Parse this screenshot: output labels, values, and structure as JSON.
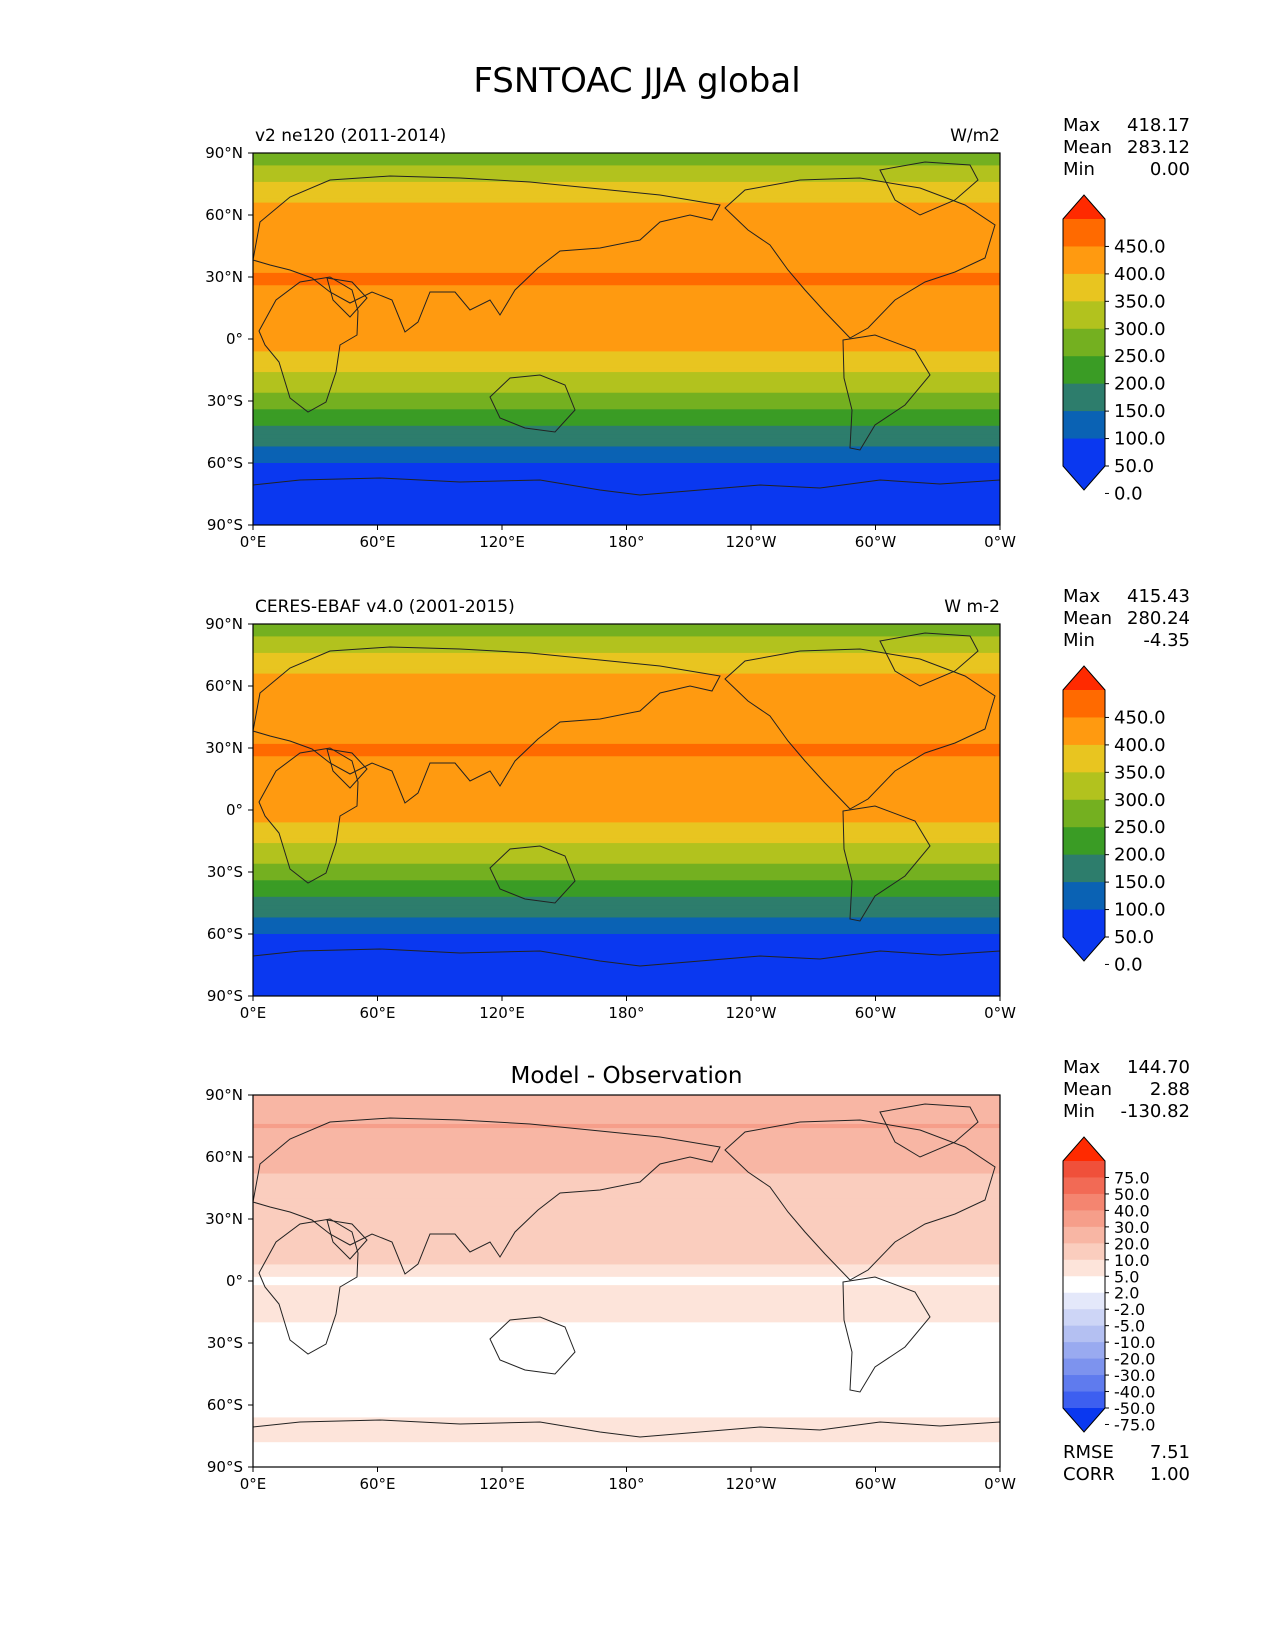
{
  "title": "FSNTOAC JJA global",
  "x_ticks": [
    "0°E",
    "60°E",
    "120°E",
    "180°",
    "120°W",
    "60°W",
    "0°W"
  ],
  "y_ticks": [
    "90°N",
    "60°N",
    "30°N",
    "0°",
    "30°S",
    "60°S",
    "90°S"
  ],
  "chart_data": [
    {
      "type": "heatmap",
      "panel": "model",
      "title_left": "v2 ne120 (2011-2014)",
      "title_center": "",
      "title_right": "W/m2",
      "xlim": [
        0,
        360
      ],
      "ylim": [
        -90,
        90
      ],
      "stats": [
        {
          "label": "Max",
          "value": "418.17"
        },
        {
          "label": "Mean",
          "value": "283.12"
        },
        {
          "label": "Min",
          "value": "0.00"
        }
      ],
      "colorbar": {
        "labels": [
          "450.0",
          "400.0",
          "350.0",
          "300.0",
          "250.0",
          "200.0",
          "150.0",
          "100.0",
          "50.0",
          "0.0"
        ],
        "colors": [
          "#ff2a00",
          "#ff6a00",
          "#ff9a10",
          "#e8c520",
          "#b2c21e",
          "#74b020",
          "#3a9c25",
          "#2d7d6c",
          "#0a62b4",
          "#0a38f0",
          "#0a38f0"
        ]
      },
      "lat_bands": [
        {
          "lat": 87,
          "value": 230
        },
        {
          "lat": 80,
          "value": 270
        },
        {
          "lat": 70,
          "value": 345
        },
        {
          "lat": 60,
          "value": 360
        },
        {
          "lat": 45,
          "value": 375
        },
        {
          "lat": 30,
          "value": 405
        },
        {
          "lat": 15,
          "value": 380
        },
        {
          "lat": 5,
          "value": 365
        },
        {
          "lat": -5,
          "value": 355
        },
        {
          "lat": -15,
          "value": 310
        },
        {
          "lat": -20,
          "value": 280
        },
        {
          "lat": -25,
          "value": 260
        },
        {
          "lat": -30,
          "value": 225
        },
        {
          "lat": -35,
          "value": 190
        },
        {
          "lat": -40,
          "value": 160
        },
        {
          "lat": -45,
          "value": 140
        },
        {
          "lat": -50,
          "value": 115
        },
        {
          "lat": -55,
          "value": 75
        },
        {
          "lat": -63,
          "value": 30
        },
        {
          "lat": -72,
          "value": 20
        },
        {
          "lat": -78,
          "value": 10
        },
        {
          "lat": -85,
          "value": 0
        }
      ]
    },
    {
      "type": "heatmap",
      "panel": "observation",
      "title_left": "CERES-EBAF v4.0 (2001-2015)",
      "title_center": "",
      "title_right": "W m-2",
      "xlim": [
        0,
        360
      ],
      "ylim": [
        -90,
        90
      ],
      "stats": [
        {
          "label": "Max",
          "value": "415.43"
        },
        {
          "label": "Mean",
          "value": "280.24"
        },
        {
          "label": "Min",
          "value": "-4.35"
        }
      ],
      "colorbar": {
        "labels": [
          "450.0",
          "400.0",
          "350.0",
          "300.0",
          "250.0",
          "200.0",
          "150.0",
          "100.0",
          "50.0",
          "0.0"
        ],
        "colors": [
          "#ff2a00",
          "#ff6a00",
          "#ff9a10",
          "#e8c520",
          "#b2c21e",
          "#74b020",
          "#3a9c25",
          "#2d7d6c",
          "#0a62b4",
          "#0a38f0",
          "#0a38f0"
        ]
      },
      "lat_bands": [
        {
          "lat": 87,
          "value": 230
        },
        {
          "lat": 80,
          "value": 270
        },
        {
          "lat": 70,
          "value": 345
        },
        {
          "lat": 60,
          "value": 360
        },
        {
          "lat": 45,
          "value": 375
        },
        {
          "lat": 30,
          "value": 405
        },
        {
          "lat": 15,
          "value": 380
        },
        {
          "lat": 5,
          "value": 365
        },
        {
          "lat": -5,
          "value": 355
        },
        {
          "lat": -15,
          "value": 310
        },
        {
          "lat": -20,
          "value": 280
        },
        {
          "lat": -25,
          "value": 260
        },
        {
          "lat": -30,
          "value": 225
        },
        {
          "lat": -35,
          "value": 190
        },
        {
          "lat": -40,
          "value": 160
        },
        {
          "lat": -45,
          "value": 140
        },
        {
          "lat": -50,
          "value": 115
        },
        {
          "lat": -55,
          "value": 75
        },
        {
          "lat": -65,
          "value": 30
        },
        {
          "lat": -72,
          "value": 20
        },
        {
          "lat": -78,
          "value": 0
        },
        {
          "lat": -85,
          "value": 0
        }
      ]
    },
    {
      "type": "heatmap",
      "panel": "difference",
      "title_left": "",
      "title_center": "Model - Observation",
      "title_right": "",
      "xlim": [
        0,
        360
      ],
      "ylim": [
        -90,
        90
      ],
      "stats": [
        {
          "label": "Max",
          "value": "144.70"
        },
        {
          "label": "Mean",
          "value": "2.88"
        },
        {
          "label": "Min",
          "value": "-130.82"
        }
      ],
      "extra_stats": [
        {
          "label": "RMSE",
          "value": "7.51"
        },
        {
          "label": "CORR",
          "value": "1.00"
        }
      ],
      "colorbar": {
        "labels": [
          "75.0",
          "50.0",
          "40.0",
          "30.0",
          "20.0",
          "10.0",
          "5.0",
          "2.0",
          "-2.0",
          "-5.0",
          "-10.0",
          "-20.0",
          "-30.0",
          "-40.0",
          "-50.0",
          "-75.0"
        ],
        "colors": [
          "#ff2a00",
          "#f0503a",
          "#f26a55",
          "#f48570",
          "#f69e8a",
          "#f8b6a4",
          "#facdbe",
          "#fde4da",
          "#ffffff",
          "#e4e8fa",
          "#cdd5f6",
          "#b4c0f2",
          "#99aaf0",
          "#7d93ee",
          "#5f7bee",
          "#3d5ff0",
          "#0a38f0"
        ]
      },
      "lat_bands": [
        {
          "lat": 85,
          "value": 12
        },
        {
          "lat": 75,
          "value": 20
        },
        {
          "lat": 60,
          "value": 12
        },
        {
          "lat": 45,
          "value": 8
        },
        {
          "lat": 30,
          "value": 6
        },
        {
          "lat": 15,
          "value": 8
        },
        {
          "lat": 0,
          "value": 1
        },
        {
          "lat": -10,
          "value": 5
        },
        {
          "lat": -25,
          "value": 0
        },
        {
          "lat": -45,
          "value": 0
        },
        {
          "lat": -60,
          "value": 0
        },
        {
          "lat": -72,
          "value": 4
        },
        {
          "lat": -82,
          "value": 0
        }
      ]
    }
  ]
}
